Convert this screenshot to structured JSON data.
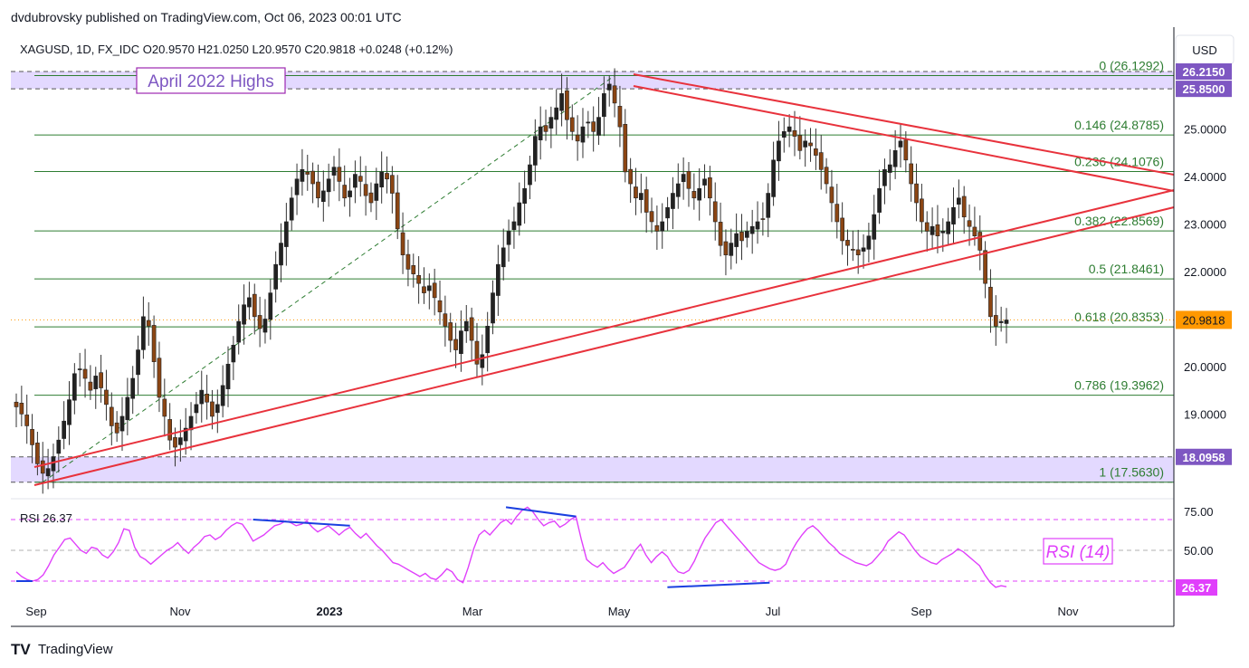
{
  "header": {
    "published": "dvdubrovsky published on TradingView.com, Oct 06, 2023 00:01 UTC",
    "legend": "XAGUSD, 1D, FX_IDC  O20.9570  H21.0250  L20.9570  C20.9818  +0.0248 (+0.12%)"
  },
  "currency_button": "USD",
  "annotations": {
    "april_highs": "April 2022 Highs",
    "rsi_box": "RSI (14)"
  },
  "footer": {
    "brand": "TradingView",
    "logo_text": "TV"
  },
  "colors": {
    "up": "#222222",
    "down": "#8b4513",
    "trend": "#e8323c",
    "fib": "#2e7d32",
    "band": "#d9ccff",
    "rsi": "#e040fb",
    "div": "#1a3fe0",
    "accent": "#ff9800"
  },
  "chart_data": [
    {
      "type": "candlestick",
      "symbol": "XAGUSD",
      "timeframe": "1D",
      "ohlc_last": {
        "open": 20.957,
        "high": 21.025,
        "low": 20.957,
        "close": 20.9818,
        "change": 0.0248,
        "change_pct": 0.12
      },
      "x_labels": [
        "Sep",
        "Nov",
        "2023",
        "Mar",
        "May",
        "Jul",
        "Sep",
        "Nov"
      ],
      "y_ticks": [
        "25.0000",
        "24.0000",
        "23.0000",
        "22.0000",
        "20.0000",
        "19.0000"
      ],
      "ylim": [
        16.8,
        26.35
      ],
      "closes": [
        19.15,
        19.0,
        18.75,
        18.35,
        17.95,
        17.75,
        17.85,
        18.1,
        18.45,
        18.85,
        19.3,
        19.85,
        19.95,
        19.75,
        19.5,
        19.8,
        19.55,
        19.2,
        18.75,
        18.6,
        18.95,
        19.35,
        19.75,
        20.35,
        21.05,
        20.85,
        20.1,
        19.35,
        18.95,
        18.45,
        18.3,
        18.5,
        18.7,
        18.95,
        19.2,
        19.5,
        19.25,
        18.95,
        19.2,
        19.6,
        20.05,
        20.45,
        20.95,
        21.3,
        21.45,
        21.05,
        20.8,
        21.0,
        21.55,
        22.15,
        22.6,
        23.05,
        23.55,
        23.95,
        24.15,
        24.05,
        23.85,
        23.55,
        23.7,
        23.95,
        24.2,
        23.9,
        23.55,
        23.7,
        24.05,
        23.9,
        23.6,
        23.45,
        23.85,
        24.1,
        23.95,
        23.65,
        22.9,
        22.35,
        22.05,
        21.95,
        21.75,
        21.55,
        21.7,
        21.45,
        21.15,
        20.85,
        20.55,
        20.35,
        20.75,
        20.95,
        20.55,
        20.05,
        20.25,
        20.85,
        21.55,
        22.15,
        22.5,
        22.85,
        23.05,
        23.45,
        23.75,
        24.25,
        24.85,
        25.05,
        24.95,
        25.25,
        25.45,
        25.75,
        25.2,
        24.95,
        24.75,
        25.05,
        25.15,
        24.95,
        25.25,
        25.75,
        25.95,
        25.55,
        25.05,
        24.1,
        23.85,
        23.55,
        23.65,
        23.25,
        23.05,
        22.85,
        23.05,
        23.35,
        23.65,
        23.85,
        24.05,
        23.75,
        23.55,
        23.75,
        23.95,
        23.55,
        23.05,
        22.55,
        22.35,
        22.6,
        22.8,
        22.65,
        22.85,
        22.95,
        23.05,
        23.1,
        23.65,
        24.35,
        24.75,
        24.95,
        25.05,
        24.85,
        24.55,
        24.75,
        24.65,
        24.45,
        24.15,
        23.85,
        23.45,
        23.05,
        22.65,
        22.55,
        22.45,
        22.35,
        22.5,
        22.75,
        23.2,
        23.75,
        24.15,
        24.25,
        24.55,
        24.75,
        24.35,
        23.85,
        23.45,
        23.05,
        22.85,
        22.95,
        22.75,
        22.85,
        23.05,
        23.35,
        23.55,
        23.15,
        22.95,
        22.75,
        22.45,
        21.75,
        21.05,
        20.85,
        20.95,
        20.98
      ],
      "fib_levels": [
        {
          "label": "0 (26.1292)",
          "value": 26.1292
        },
        {
          "label": "0.146 (24.8785)",
          "value": 24.8785
        },
        {
          "label": "0.236 (24.1076)",
          "value": 24.1076
        },
        {
          "label": "0.382 (22.8569)",
          "value": 22.8569
        },
        {
          "label": "0.5 (21.8461)",
          "value": 21.8461
        },
        {
          "label": "0.618 (20.8353)",
          "value": 20.8353
        },
        {
          "label": "0.786 (19.3962)",
          "value": 19.3962
        },
        {
          "label": "1 (17.5630)",
          "value": 17.563
        }
      ],
      "zones": [
        {
          "name": "upper",
          "from": 25.85,
          "to": 26.215,
          "labels": [
            "26.2150",
            "25.8500"
          ]
        },
        {
          "name": "lower",
          "from": 17.563,
          "to": 18.0958,
          "labels": [
            "18.0958"
          ]
        }
      ],
      "last_price_label": "20.9818"
    },
    {
      "type": "line",
      "name": "RSI",
      "legend": "RSI  26.37",
      "last_label": "26.37",
      "y_ticks": [
        "75.00",
        "50.00"
      ],
      "ylim": [
        20,
        82
      ],
      "levels": [
        70,
        50,
        30
      ],
      "values": [
        36,
        33,
        31,
        30,
        31,
        34,
        40,
        47,
        52,
        57,
        58,
        54,
        50,
        48,
        52,
        51,
        47,
        45,
        49,
        55,
        64,
        63,
        52,
        46,
        44,
        41,
        44,
        47,
        50,
        52,
        55,
        51,
        48,
        52,
        55,
        59,
        60,
        57,
        59,
        63,
        66,
        68,
        67,
        62,
        56,
        58,
        60,
        63,
        66,
        67,
        69,
        68,
        66,
        67,
        69,
        65,
        62,
        64,
        66,
        63,
        60,
        63,
        65,
        61,
        58,
        61,
        57,
        53,
        50,
        46,
        42,
        41,
        39,
        37,
        35,
        33,
        35,
        32,
        31,
        34,
        38,
        36,
        31,
        29,
        39,
        51,
        60,
        63,
        60,
        64,
        68,
        70,
        67,
        72,
        76,
        78,
        75,
        70,
        66,
        68,
        69,
        65,
        67,
        70,
        72,
        57,
        44,
        41,
        39,
        42,
        38,
        35,
        37,
        39,
        44,
        50,
        54,
        47,
        42,
        46,
        49,
        46,
        40,
        36,
        35,
        37,
        43,
        51,
        58,
        63,
        68,
        70,
        66,
        62,
        58,
        54,
        50,
        46,
        42,
        40,
        38,
        37,
        38,
        41,
        49,
        55,
        60,
        64,
        66,
        63,
        59,
        55,
        52,
        48,
        46,
        44,
        42,
        41,
        40,
        42,
        46,
        50,
        56,
        59,
        62,
        60,
        55,
        50,
        46,
        44,
        42,
        41,
        44,
        46,
        48,
        51,
        49,
        46,
        43,
        40,
        34,
        29,
        26,
        27,
        26.37
      ],
      "divergences": [
        {
          "from": [
            0,
            30
          ],
          "to": [
            3,
            30
          ]
        },
        {
          "from": [
            44,
            70
          ],
          "to": [
            62,
            66
          ]
        },
        {
          "from": [
            91,
            78
          ],
          "to": [
            104,
            72
          ]
        },
        {
          "from": [
            121,
            26
          ],
          "to": [
            140,
            29
          ]
        }
      ]
    }
  ]
}
